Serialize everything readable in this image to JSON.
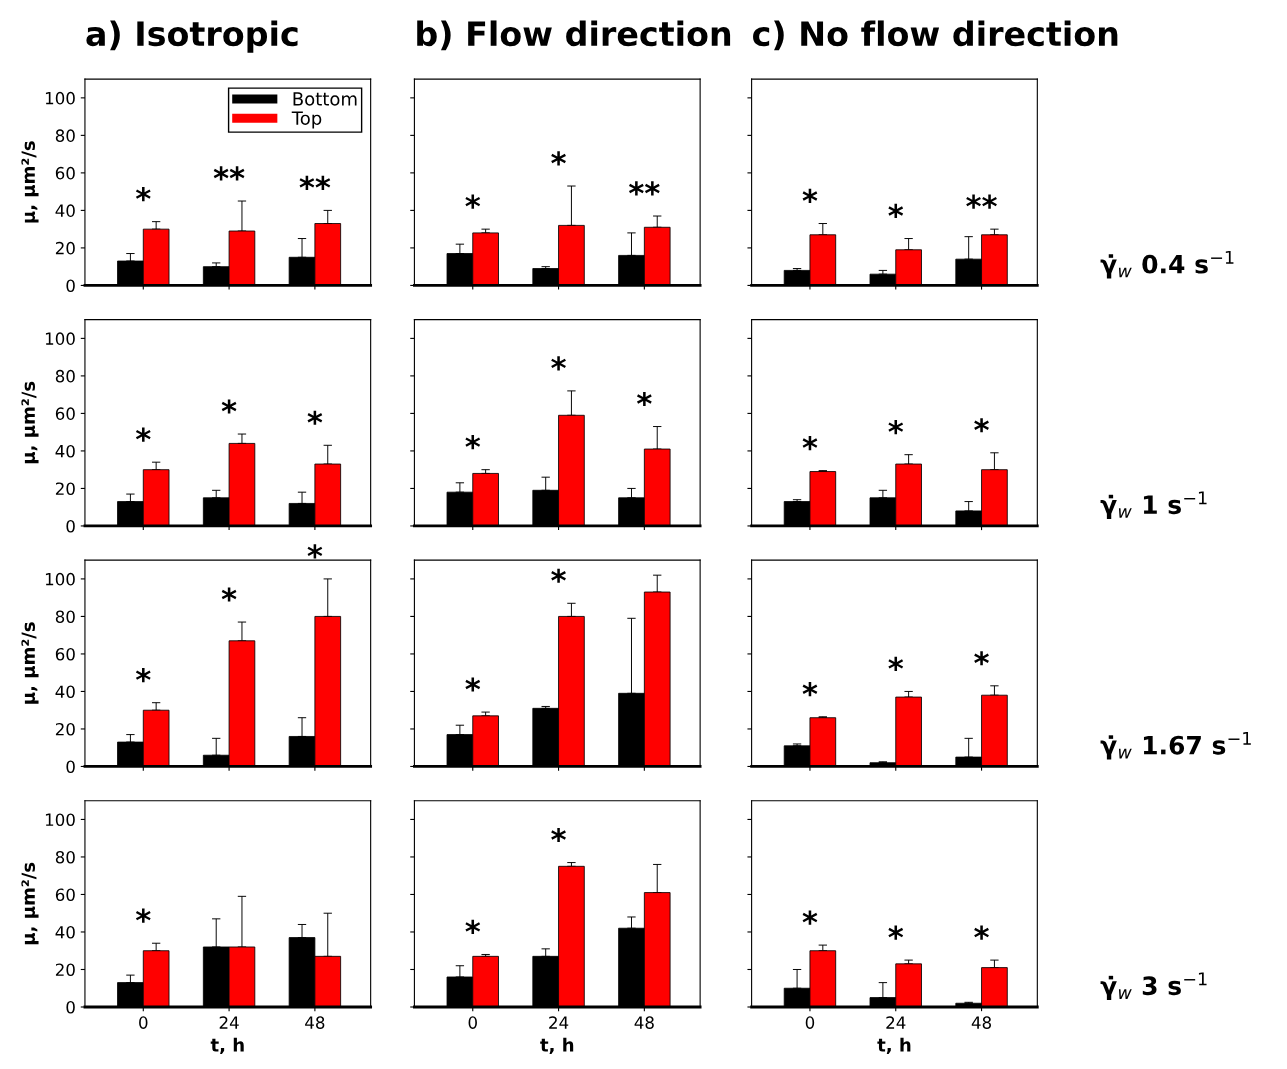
{
  "chart_data": [
    {
      "type": "bar",
      "title": "a) Isotropic",
      "ylabel": "μ, μm²/s",
      "categories": [
        "0",
        "24",
        "48"
      ],
      "ylim": [
        0,
        110
      ],
      "yticks": [
        0,
        20,
        40,
        60,
        80,
        100
      ],
      "tick_labels": "y",
      "legend": "top right",
      "series": [
        {
          "name": "Bottom",
          "color": "#000000",
          "values": [
            13,
            10,
            15
          ],
          "errors": [
            [
              13,
              17
            ],
            [
              10,
              12
            ],
            [
              15,
              25
            ]
          ]
        },
        {
          "name": "Top",
          "color": "#ff0000",
          "values": [
            30,
            29,
            33
          ],
          "errors": [
            [
              30,
              34
            ],
            [
              29,
              45
            ],
            [
              33,
              40
            ]
          ]
        }
      ],
      "annotations": [
        "*",
        "**",
        "**"
      ]
    },
    {
      "type": "bar",
      "title": "b) Flow direction",
      "categories": [
        "0",
        "24",
        "48"
      ],
      "ylim": [
        0,
        110
      ],
      "yticks": [
        0,
        20,
        40,
        60,
        80,
        100
      ],
      "tick_labels": false,
      "series": [
        {
          "color": "#000000",
          "values": [
            17,
            9,
            16
          ],
          "errors": [
            [
              17,
              22
            ],
            [
              9,
              10
            ],
            [
              16,
              28
            ]
          ]
        },
        {
          "color": "#ff0000",
          "values": [
            28,
            32,
            31
          ],
          "errors": [
            [
              28,
              30
            ],
            [
              32,
              53
            ],
            [
              31,
              37
            ]
          ]
        }
      ],
      "annotations": [
        "*",
        "*",
        "**"
      ]
    },
    {
      "type": "bar",
      "title": "c) No flow direction",
      "y2label": "γ̇$_{w}$ 0.4 s$^{−1}$",
      "categories": [
        "0",
        "24",
        "48"
      ],
      "ylim": [
        0,
        110
      ],
      "yticks": [
        0,
        20,
        40,
        60,
        80,
        100
      ],
      "tick_labels": false,
      "series": [
        {
          "color": "#000000",
          "values": [
            8,
            6,
            14
          ],
          "errors": [
            [
              8,
              9
            ],
            [
              6,
              8
            ],
            [
              14,
              26
            ]
          ]
        },
        {
          "color": "#ff0000",
          "values": [
            27,
            19,
            27
          ],
          "errors": [
            [
              27,
              33
            ],
            [
              19,
              25
            ],
            [
              27,
              30
            ]
          ]
        }
      ],
      "annotations": [
        "*",
        "*",
        "**"
      ]
    },
    {
      "type": "bar",
      "ylabel": "μ, μm²/s",
      "categories": [
        "0",
        "24",
        "48"
      ],
      "ylim": [
        0,
        110
      ],
      "yticks": [
        0,
        20,
        40,
        60,
        80,
        100
      ],
      "tick_labels": "y",
      "series": [
        {
          "color": "#000000",
          "values": [
            13,
            15,
            12
          ],
          "errors": [
            [
              13,
              17
            ],
            [
              15,
              19
            ],
            [
              12,
              18
            ]
          ]
        },
        {
          "color": "#ff0000",
          "values": [
            30,
            44,
            33
          ],
          "errors": [
            [
              30,
              34
            ],
            [
              44,
              49
            ],
            [
              33,
              43
            ]
          ]
        }
      ],
      "annotations": [
        "*",
        "*",
        "*"
      ]
    },
    {
      "type": "bar",
      "categories": [
        "0",
        "24",
        "48"
      ],
      "ylim": [
        0,
        110
      ],
      "yticks": [
        0,
        20,
        40,
        60,
        80,
        100
      ],
      "tick_labels": false,
      "series": [
        {
          "color": "#000000",
          "values": [
            18,
            19,
            15
          ],
          "errors": [
            [
              18,
              23
            ],
            [
              19,
              26
            ],
            [
              15,
              20
            ]
          ]
        },
        {
          "color": "#ff0000",
          "values": [
            28,
            59,
            41
          ],
          "errors": [
            [
              28,
              30
            ],
            [
              59,
              72
            ],
            [
              41,
              53
            ]
          ]
        }
      ],
      "annotations": [
        "*",
        "*",
        "*"
      ]
    },
    {
      "type": "bar",
      "y2label": "γ̇$_{w}$ 1 s$^{−1}$",
      "categories": [
        "0",
        "24",
        "48"
      ],
      "ylim": [
        0,
        110
      ],
      "yticks": [
        0,
        20,
        40,
        60,
        80,
        100
      ],
      "tick_labels": false,
      "series": [
        {
          "color": "#000000",
          "values": [
            13,
            15,
            8
          ],
          "errors": [
            [
              13,
              14
            ],
            [
              15,
              19
            ],
            [
              8,
              13
            ]
          ]
        },
        {
          "color": "#ff0000",
          "values": [
            29,
            33,
            30
          ],
          "errors": [
            [
              29,
              29.5
            ],
            [
              33,
              38
            ],
            [
              30,
              39
            ]
          ]
        }
      ],
      "annotations": [
        "*",
        "*",
        "*"
      ]
    },
    {
      "type": "bar",
      "ylabel": "μ, μm²/s",
      "categories": [
        "0",
        "24",
        "48"
      ],
      "ylim": [
        0,
        110
      ],
      "yticks": [
        0,
        20,
        40,
        60,
        80,
        100
      ],
      "tick_labels": "y",
      "series": [
        {
          "color": "#000000",
          "values": [
            13,
            6,
            16
          ],
          "errors": [
            [
              13,
              17
            ],
            [
              6,
              15
            ],
            [
              16,
              26
            ]
          ]
        },
        {
          "color": "#ff0000",
          "values": [
            30,
            67,
            80
          ],
          "errors": [
            [
              30,
              34
            ],
            [
              67,
              77
            ],
            [
              80,
              100
            ]
          ]
        }
      ],
      "annotations": [
        "*",
        "*",
        "*"
      ]
    },
    {
      "type": "bar",
      "categories": [
        "0",
        "24",
        "48"
      ],
      "ylim": [
        0,
        110
      ],
      "yticks": [
        0,
        20,
        40,
        60,
        80,
        100
      ],
      "tick_labels": false,
      "series": [
        {
          "color": "#000000",
          "values": [
            17,
            31,
            39
          ],
          "errors": [
            [
              17,
              22
            ],
            [
              31,
              32
            ],
            [
              39,
              79
            ]
          ]
        },
        {
          "color": "#ff0000",
          "values": [
            27,
            80,
            93
          ],
          "errors": [
            [
              27,
              29
            ],
            [
              80,
              87
            ],
            [
              93,
              102
            ]
          ]
        }
      ],
      "annotations": [
        "*",
        "*"
      ]
    },
    {
      "type": "bar",
      "y2label": "γ̇$_{w}$ 1.67 s$^{−1}$",
      "categories": [
        "0",
        "24",
        "48"
      ],
      "ylim": [
        0,
        110
      ],
      "yticks": [
        0,
        20,
        40,
        60,
        80,
        100
      ],
      "tick_labels": false,
      "series": [
        {
          "color": "#000000",
          "values": [
            11,
            2,
            5
          ],
          "errors": [
            [
              11,
              12
            ],
            [
              2,
              2.5
            ],
            [
              5,
              15
            ]
          ]
        },
        {
          "color": "#ff0000",
          "values": [
            26,
            37,
            38
          ],
          "errors": [
            [
              26,
              26.5
            ],
            [
              37,
              40
            ],
            [
              38,
              43
            ]
          ]
        }
      ],
      "annotations": [
        "*",
        "*",
        "*"
      ]
    },
    {
      "type": "bar",
      "ylabel": "μ, μm²/s",
      "xlabel": "t, h",
      "categories": [
        "0",
        "24",
        "48"
      ],
      "ylim": [
        0,
        110
      ],
      "yticks": [
        0,
        20,
        40,
        60,
        80,
        100
      ],
      "series": [
        {
          "color": "#000000",
          "values": [
            13,
            32,
            37
          ],
          "errors": [
            [
              13,
              17
            ],
            [
              32,
              47
            ],
            [
              37,
              44
            ]
          ]
        },
        {
          "color": "#ff0000",
          "values": [
            30,
            32,
            27
          ],
          "errors": [
            [
              30,
              34
            ],
            [
              32,
              59
            ],
            [
              27,
              50
            ]
          ]
        }
      ],
      "annotations": [
        "*"
      ]
    },
    {
      "type": "bar",
      "xlabel": "t, h",
      "categories": [
        "0",
        "24",
        "48"
      ],
      "ylim": [
        0,
        110
      ],
      "yticks": [
        0,
        20,
        40,
        60,
        80,
        100
      ],
      "tick_labels": "x",
      "series": [
        {
          "color": "#000000",
          "values": [
            16,
            27,
            42
          ],
          "errors": [
            [
              16,
              22
            ],
            [
              27,
              31
            ],
            [
              42,
              48
            ]
          ]
        },
        {
          "color": "#ff0000",
          "values": [
            27,
            75,
            61
          ],
          "errors": [
            [
              27,
              28
            ],
            [
              75,
              77
            ],
            [
              61,
              76
            ]
          ]
        }
      ],
      "annotations": [
        "*",
        "*"
      ]
    },
    {
      "type": "bar",
      "xlabel": "t, h",
      "y2label": "γ̇$_{w}$ 3 s$^{−1}$",
      "categories": [
        "0",
        "24",
        "48"
      ],
      "ylim": [
        0,
        110
      ],
      "yticks": [
        0,
        20,
        40,
        60,
        80,
        100
      ],
      "tick_labels": "x",
      "series": [
        {
          "color": "#000000",
          "values": [
            10,
            5,
            2
          ],
          "errors": [
            [
              10,
              20
            ],
            [
              5,
              13
            ],
            [
              2,
              2.5
            ]
          ]
        },
        {
          "color": "#ff0000",
          "values": [
            30,
            23,
            21
          ],
          "errors": [
            [
              30,
              33
            ],
            [
              23,
              25
            ],
            [
              21,
              25
            ]
          ]
        }
      ],
      "annotations": [
        "*",
        "*",
        "*"
      ]
    }
  ]
}
